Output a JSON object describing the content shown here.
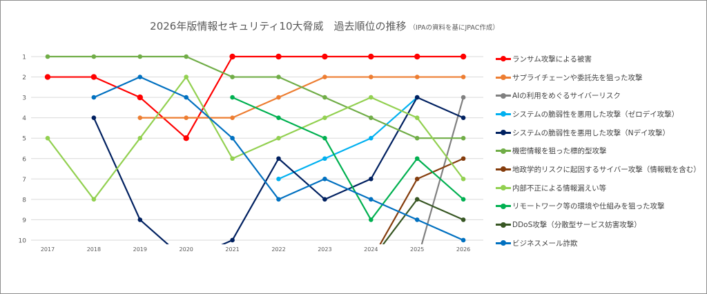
{
  "chart_data": {
    "type": "line",
    "title": "2026年版情報セキュリティ10大脅威　過去順位の推移",
    "subtitle": "（IPAの資料を基にJPAC作成）",
    "xlabel": "",
    "ylabel": "",
    "x": [
      "2017",
      "2018",
      "2019",
      "2020",
      "2021",
      "2022",
      "2023",
      "2024",
      "2025",
      "2026"
    ],
    "y_ticks": [
      "1",
      "2",
      "3",
      "4",
      "5",
      "6",
      "7",
      "8",
      "9",
      "10"
    ],
    "ylim": [
      1,
      10
    ],
    "y_inverted": true,
    "grid": true,
    "legend_position": "right",
    "series": [
      {
        "name": "ランサム攻撃による被害",
        "color": "#ff0000",
        "values": [
          2,
          2,
          3,
          5,
          1,
          1,
          1,
          1,
          1,
          1
        ]
      },
      {
        "name": "サプライチェーンや委託先を狙った攻撃",
        "color": "#ed7d31",
        "values": [
          null,
          null,
          4,
          4,
          4,
          3,
          2,
          2,
          2,
          2
        ]
      },
      {
        "name": "AIの利用をめぐるサイバーリスク",
        "color": "#808080",
        "values": [
          null,
          null,
          null,
          null,
          null,
          null,
          null,
          null,
          11,
          3
        ]
      },
      {
        "name": "システムの脆弱性を悪用した攻撃（ゼロデイ攻撃）",
        "color": "#00b0f0",
        "values": [
          null,
          null,
          null,
          null,
          null,
          7,
          6,
          5,
          3,
          null
        ]
      },
      {
        "name": "システムの脆弱性を悪用した攻撃（Nデイ攻撃）",
        "color": "#002060",
        "values": [
          null,
          4,
          9,
          11,
          10,
          6,
          8,
          7,
          3,
          4
        ]
      },
      {
        "name": "機密情報を狙った標的型攻撃",
        "color": "#70ad47",
        "values": [
          1,
          1,
          1,
          1,
          2,
          2,
          3,
          4,
          5,
          5
        ]
      },
      {
        "name": "地政学的リスクに起因するサイバー攻撃（情報戦を含む）",
        "color": "#843c0c",
        "values": [
          null,
          null,
          null,
          null,
          null,
          null,
          null,
          11,
          7,
          6
        ]
      },
      {
        "name": "内部不正による情報漏えい等",
        "color": "#92d050",
        "values": [
          5,
          8,
          5,
          2,
          6,
          5,
          4,
          3,
          4,
          7
        ]
      },
      {
        "name": "リモートワーク等の環境や仕組みを狙った攻撃",
        "color": "#00b050",
        "values": [
          null,
          null,
          null,
          null,
          3,
          4,
          5,
          9,
          6,
          8
        ]
      },
      {
        "name": "DDoS攻撃（分散型サービス妨害攻撃）",
        "color": "#375623",
        "values": [
          null,
          null,
          null,
          null,
          null,
          null,
          null,
          11,
          8,
          9
        ]
      },
      {
        "name": "ビジネスメール詐欺",
        "color": "#0070c0",
        "values": [
          null,
          3,
          2,
          3,
          5,
          8,
          7,
          8,
          9,
          10
        ]
      }
    ]
  }
}
